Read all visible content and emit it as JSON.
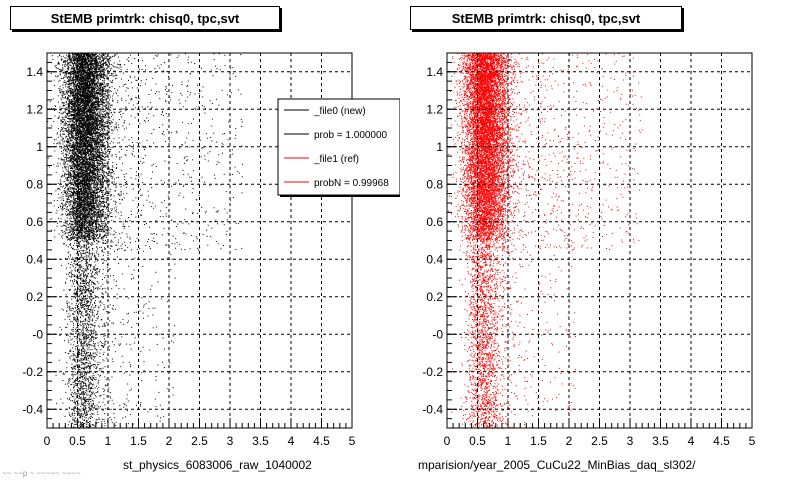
{
  "chart_data": [
    {
      "type": "scatter",
      "title": "StEMB primtrk: chisq0, tpc,svt",
      "xlabel": "st_physics_6083006_raw_1040002",
      "ylabel": "",
      "xlim": [
        0,
        5
      ],
      "ylim": [
        -0.5,
        1.5
      ],
      "xticks": [
        "0",
        "0.5",
        "1",
        "1.5",
        "2",
        "2.5",
        "3",
        "3.5",
        "4",
        "4.5",
        "5"
      ],
      "yticks": [
        "-0.4",
        "-0.2",
        "-0",
        "0.2",
        "0.4",
        "0.6",
        "0.8",
        "1",
        "1.2",
        "1.4"
      ],
      "grid": true,
      "marker_color": "#000000",
      "density_description": "dense vertical band x 0.2-1.0 concentrated y 0.5-1.5; sparse tail to x≈3; sparse band below y=0.5 around x 0.3-0.8",
      "legend": {
        "position": "top-right",
        "entries": [
          {
            "label": "_file0 (new)",
            "color": "#000000"
          },
          {
            "label": "prob = 1.000000",
            "color": "#000000"
          },
          {
            "label": "_file1 (ref)",
            "color": "#ff0000"
          },
          {
            "label": "probN = 0.99968",
            "color": "#ff0000"
          }
        ]
      }
    },
    {
      "type": "scatter",
      "title": "StEMB primtrk: chisq0, tpc,svt",
      "xlabel": "mparision/year_2005_CuCu22_MinBias_daq_sl302/",
      "ylabel": "",
      "xlim": [
        0,
        5
      ],
      "ylim": [
        -0.5,
        1.5
      ],
      "xticks": [
        "0",
        "0.5",
        "1",
        "1.5",
        "2",
        "2.5",
        "3",
        "3.5",
        "4",
        "4.5",
        "5"
      ],
      "yticks": [
        "-0.4",
        "-0.2",
        "-0",
        "0.2",
        "0.4",
        "0.6",
        "0.8",
        "1",
        "1.2",
        "1.4"
      ],
      "grid": true,
      "marker_color": "#ff0000",
      "density_description": "dense vertical band x 0.2-1.0 concentrated y 0.5-1.5; sparse tail to x≈3; sparse band below y=0.5 around x 0.3-0.8"
    }
  ],
  "footer_note": "~~ ~~p ~ ~~~~~ ~~~~"
}
